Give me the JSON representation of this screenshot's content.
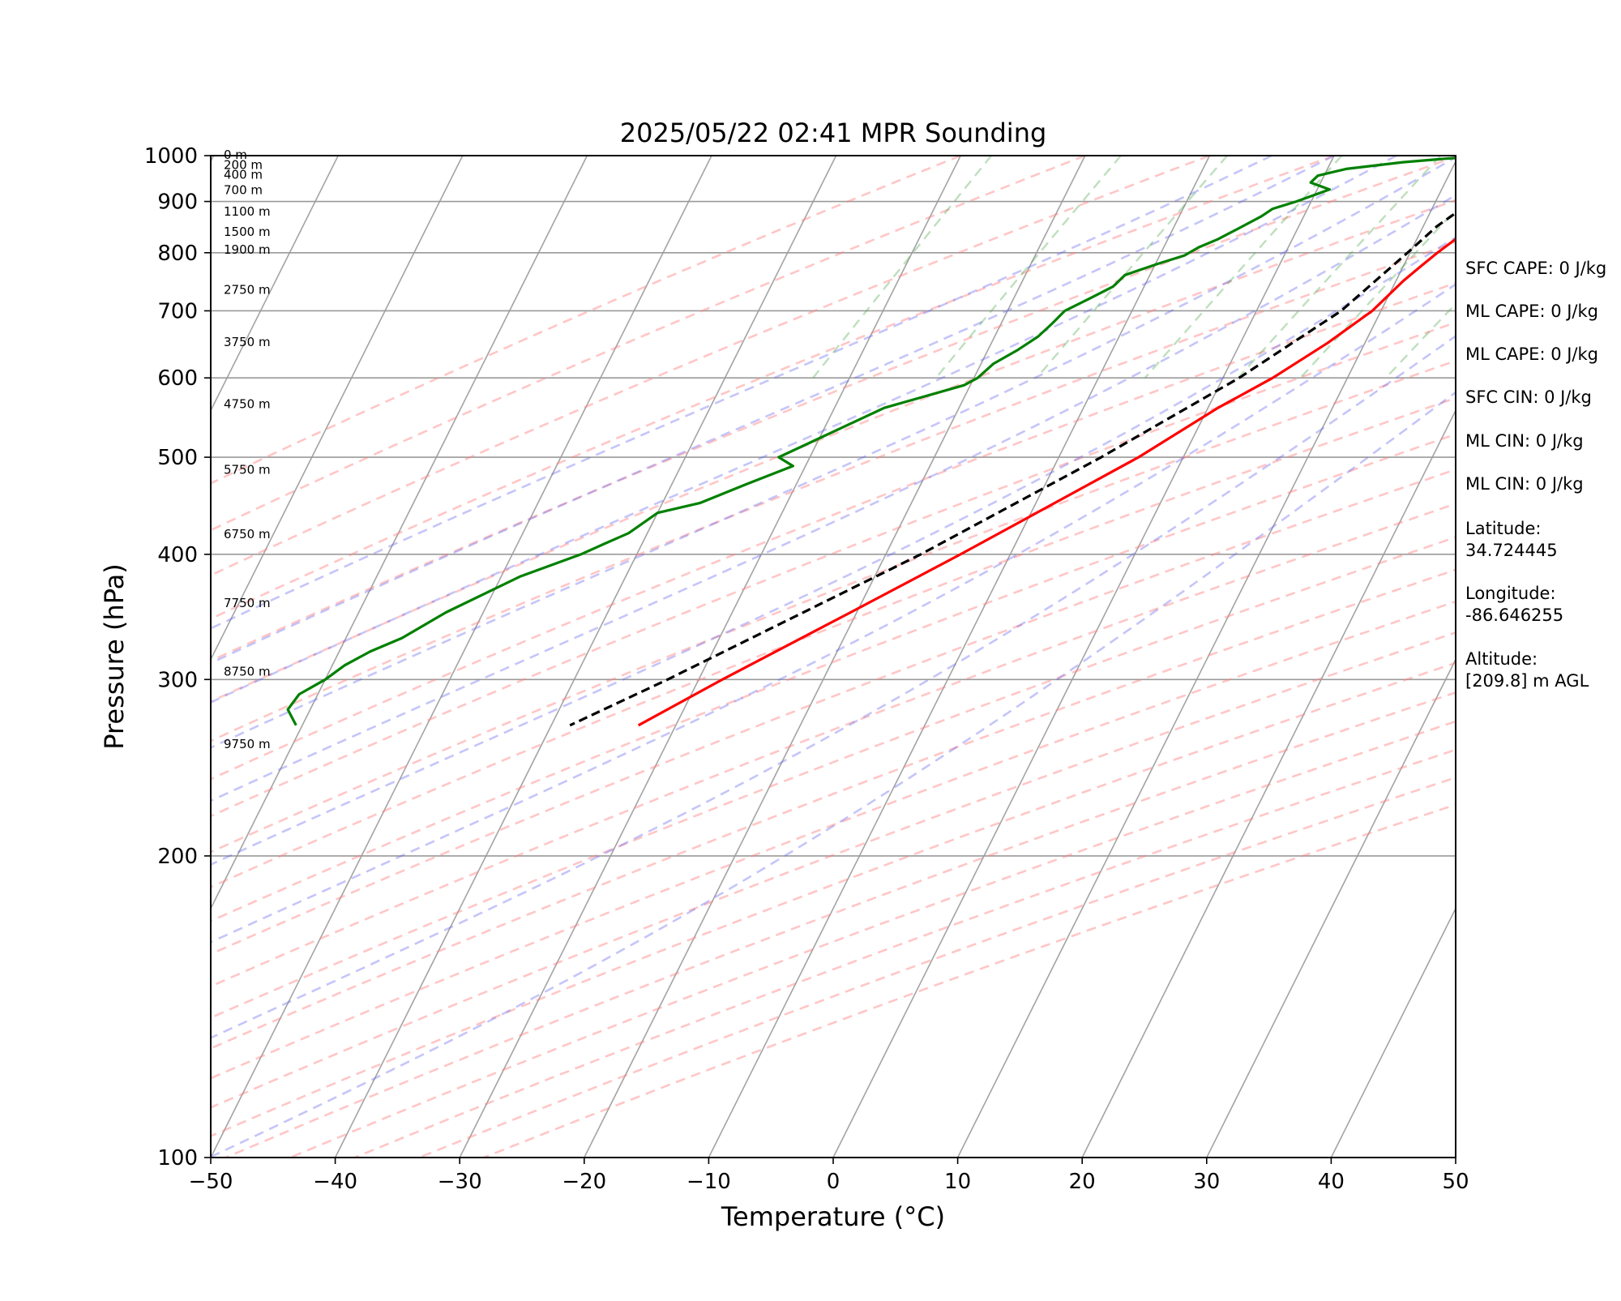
{
  "chart_data": {
    "type": "skew-t",
    "title": "2025/05/22 02:41 MPR Sounding",
    "xlabel": "Temperature (°C)",
    "ylabel": "Pressure (hPa)",
    "xlim": [
      -50,
      50
    ],
    "ylim": [
      1000,
      100
    ],
    "y_scale": "log",
    "x_ticks": [
      -50,
      -40,
      -30,
      -20,
      -10,
      0,
      10,
      20,
      30,
      40,
      50
    ],
    "x_tick_labels": [
      "−50",
      "−40",
      "−30",
      "−20",
      "−10",
      "0",
      "10",
      "20",
      "30",
      "40",
      "50"
    ],
    "y_ticks": [
      1000,
      900,
      800,
      700,
      600,
      500,
      400,
      300,
      200,
      100
    ],
    "y_tick_labels": [
      "1000",
      "900",
      "800",
      "700",
      "600",
      "500",
      "400",
      "300",
      "200",
      "100"
    ],
    "grid": true,
    "temperature": {
      "color": "#ff0000",
      "p": [
        993,
        985,
        973,
        960,
        945,
        925,
        900,
        875,
        850,
        825,
        800,
        775,
        750,
        700,
        650,
        600,
        560,
        500,
        450,
        400,
        350,
        300,
        270
      ],
      "t": [
        21.2,
        23.0,
        23.8,
        23.5,
        22.6,
        21.0,
        18.3,
        16.1,
        14.4,
        13.1,
        12.2,
        11.4,
        10.6,
        9.3,
        7.0,
        4.0,
        0.8,
        -3.6,
        -8.5,
        -14.0,
        -20.5,
        -28.1,
        -33.0
      ]
    },
    "dewpoint": {
      "color": "#008000",
      "p": [
        997,
        993,
        985,
        970,
        955,
        940,
        925,
        900,
        885,
        870,
        845,
        825,
        810,
        795,
        780,
        760,
        740,
        720,
        700,
        680,
        660,
        640,
        620,
        600,
        590,
        560,
        500,
        490,
        470,
        450,
        440,
        420,
        410,
        400,
        380,
        350,
        330,
        320,
        310,
        300,
        290,
        280,
        270
      ],
      "t": [
        11.0,
        9.0,
        5.8,
        1.5,
        -0.5,
        -0.8,
        1.0,
        -1.2,
        -2.8,
        -3.4,
        -4.8,
        -6.0,
        -7.2,
        -8.0,
        -9.8,
        -12.0,
        -12.5,
        -13.9,
        -15.4,
        -15.9,
        -16.5,
        -17.6,
        -19.0,
        -19.7,
        -20.5,
        -26.0,
        -32.5,
        -31.0,
        -34.0,
        -37.0,
        -40.0,
        -41.5,
        -43.0,
        -44.5,
        -48.5,
        -53.0,
        -55.5,
        -57.5,
        -59.0,
        -60.0,
        -61.5,
        -61.8,
        -60.5
      ]
    },
    "parcel_profile": {
      "color": "#000000",
      "style": "dashed",
      "p": [
        993,
        900,
        850,
        800,
        700,
        600,
        500,
        400,
        300,
        270
      ],
      "t": [
        21.0,
        12.9,
        11.1,
        9.8,
        6.8,
        1.3,
        -6.6,
        -17.2,
        -32.5,
        -38.5
      ]
    },
    "dry_adiabats_theta_c": [
      -30,
      -20,
      -10,
      0,
      10,
      20,
      30,
      40,
      50,
      60,
      70,
      80,
      90,
      100,
      110,
      120,
      130,
      140,
      150,
      160,
      170,
      180,
      190,
      200
    ],
    "moist_adiabats_t0_c": [
      -5,
      0,
      5,
      10,
      15,
      20,
      25,
      30,
      35
    ],
    "mixing_ratios_gkg": [
      0.4,
      1,
      2,
      4,
      7,
      10,
      16,
      24,
      32
    ],
    "height_labels": [
      {
        "p": 1000,
        "label": "0 m"
      },
      {
        "p": 977,
        "label": "200 m"
      },
      {
        "p": 955,
        "label": "400 m"
      },
      {
        "p": 922,
        "label": "700 m"
      },
      {
        "p": 878,
        "label": "1100 m"
      },
      {
        "p": 838,
        "label": "1500 m"
      },
      {
        "p": 804,
        "label": "1900 m"
      },
      {
        "p": 733,
        "label": "2750 m"
      },
      {
        "p": 650,
        "label": "3750 m"
      },
      {
        "p": 564,
        "label": "4750 m"
      },
      {
        "p": 485,
        "label": "5750 m"
      },
      {
        "p": 418,
        "label": "6750 m"
      },
      {
        "p": 357,
        "label": "7750 m"
      },
      {
        "p": 305,
        "label": "8750 m"
      },
      {
        "p": 258,
        "label": "9750 m"
      }
    ],
    "info_panel": [
      "SFC CAPE: 0 J/kg",
      "ML CAPE: 0 J/kg",
      "ML CAPE: 0 J/kg",
      "SFC CIN: 0 J/kg",
      "ML CIN: 0 J/kg",
      "ML CIN: 0 J/kg",
      [
        "Latitude:",
        "34.724445"
      ],
      [
        "Longitude:",
        "-86.646255"
      ],
      [
        "Altitude:",
        "[209.8] m AGL"
      ]
    ]
  }
}
